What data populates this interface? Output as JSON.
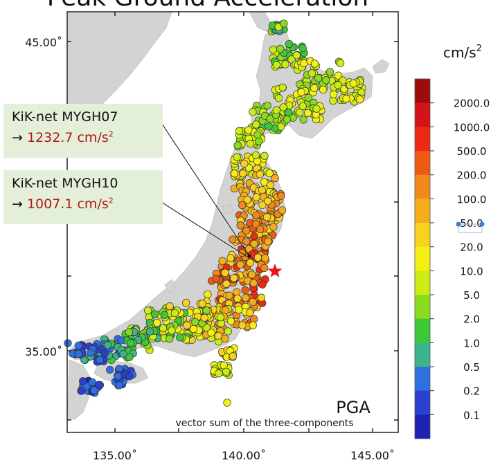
{
  "title": "Peak Ground Acceleration",
  "map": {
    "lat_labels": [
      "45.00˚",
      "35.00˚"
    ],
    "lon_labels": [
      "135.00˚",
      "140.00˚",
      "145.00˚"
    ],
    "panel_label": "PGA",
    "panel_caption": "vector sum of the three-components",
    "epicenter_color": "#e8141c",
    "land_color": "#d3d3d3"
  },
  "colorbar": {
    "unit": "cm/s",
    "unit_exponent": "2",
    "ticks": [
      "2000.0",
      "1000.0",
      "500.0",
      "200.0",
      "100.0",
      "50.0",
      "20.0",
      "10.0",
      "5.0",
      "2.0",
      "1.0",
      "0.5",
      "0.2",
      "0.1"
    ],
    "colors": [
      "#9e0b0b",
      "#d4121a",
      "#ec2a14",
      "#ef5a12",
      "#f3891a",
      "#f5ad1c",
      "#f7d21e",
      "#f5f014",
      "#ccec14",
      "#8cdb20",
      "#3ec838",
      "#3cb48c",
      "#2f6fe0",
      "#2b3fd0",
      "#1f22b0"
    ]
  },
  "callouts": [
    {
      "station": "KiK-net MYGH07",
      "arrow": "→",
      "value": "1232.7 cm/s",
      "exp": "2"
    },
    {
      "station": "KiK-net MYGH10",
      "arrow": "→",
      "value": "1007.1 cm/s",
      "exp": "2"
    }
  ]
}
